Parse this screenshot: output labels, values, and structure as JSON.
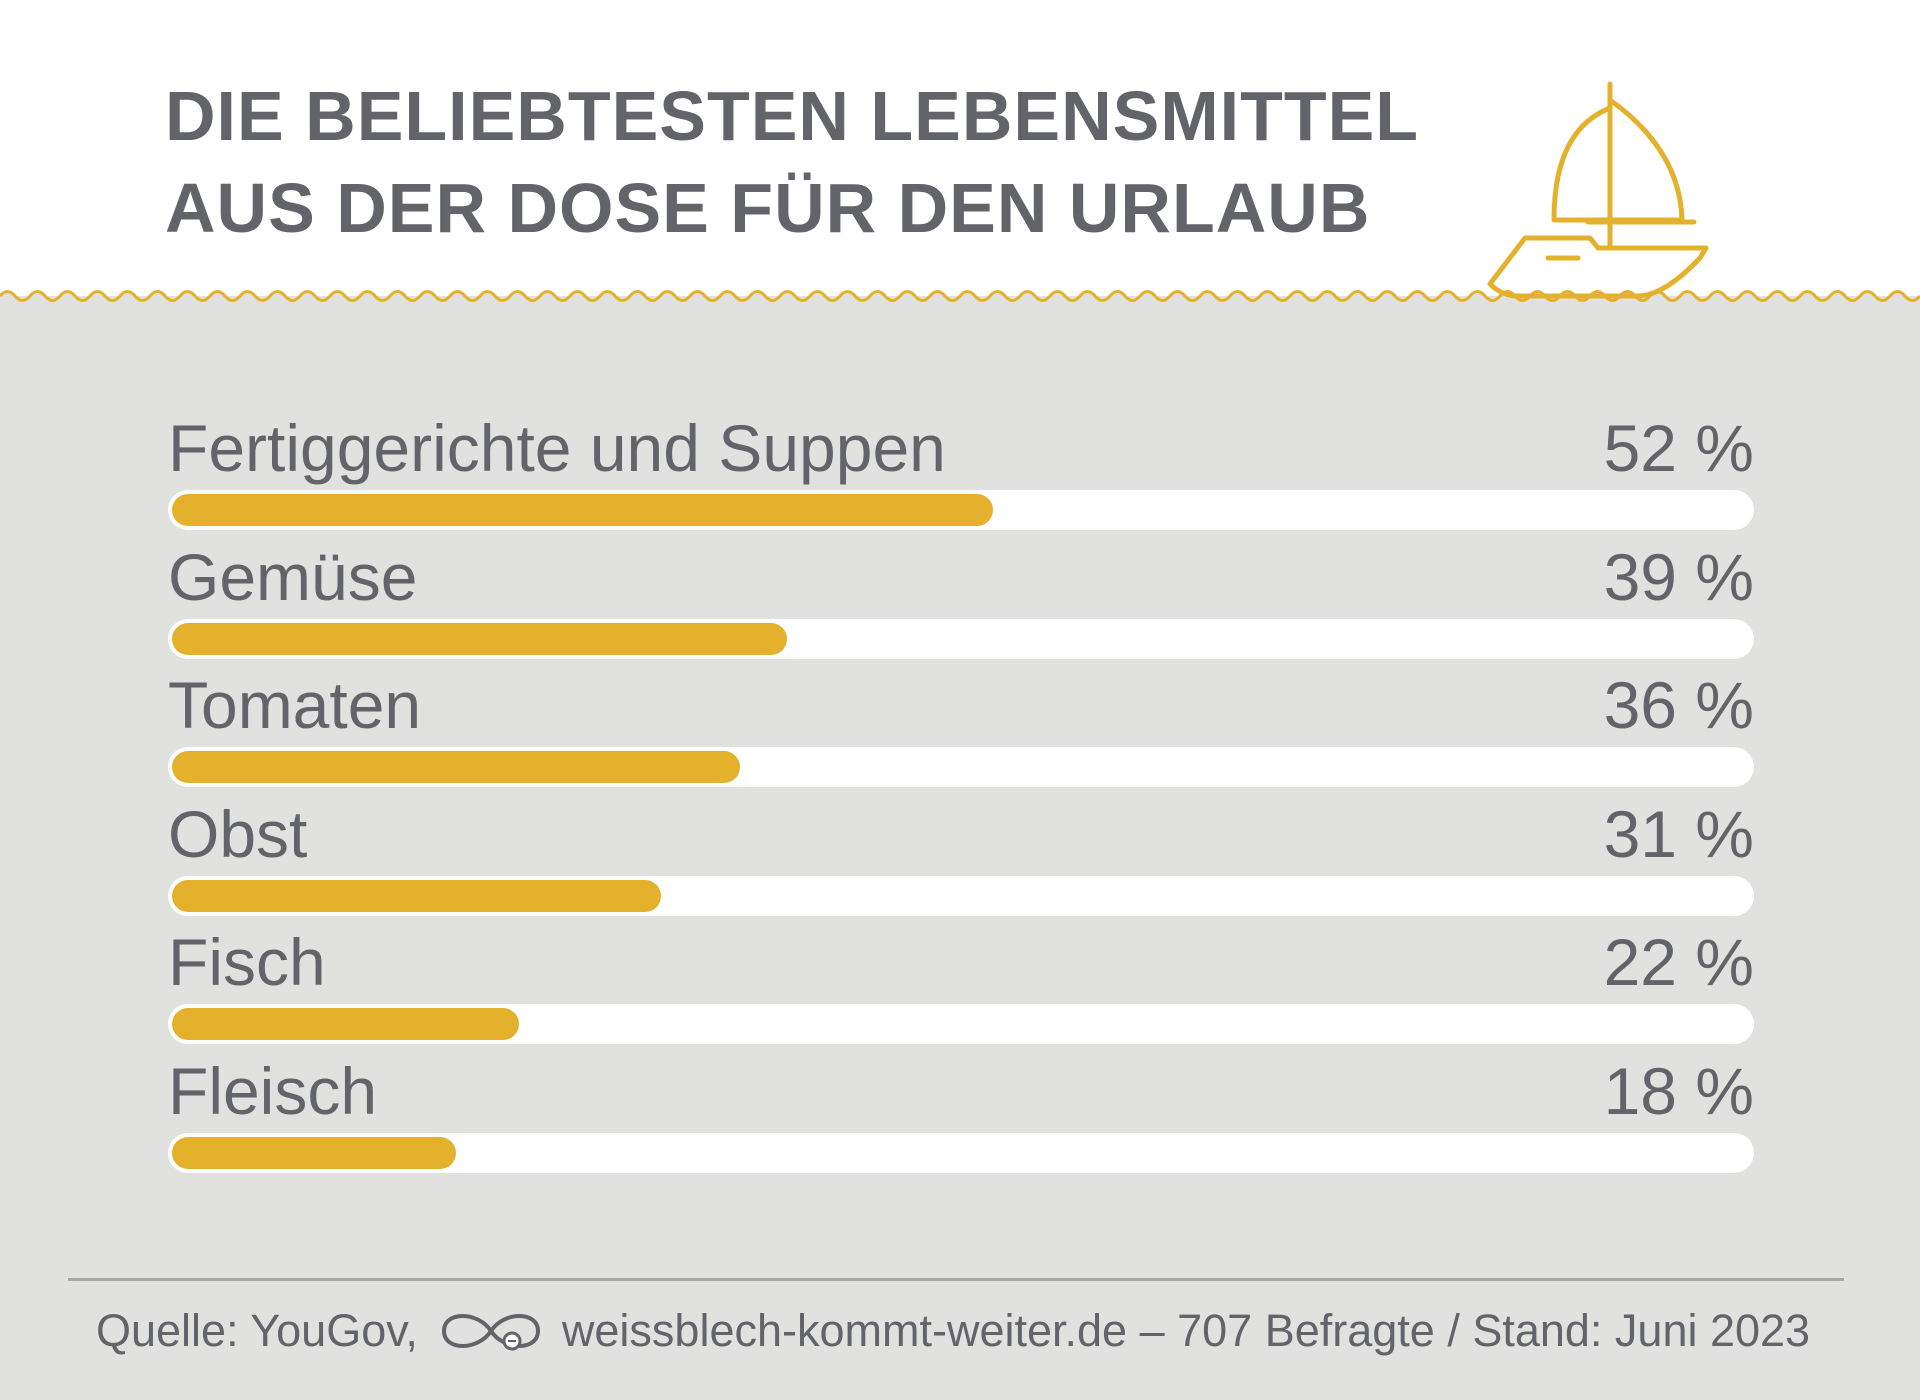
{
  "title_lines": [
    "DIE BELIEBTESTEN LEBENSMITTEL",
    "AUS DER DOSE FÜR DEN URLAUB"
  ],
  "colors": {
    "bar": "#e3b12c",
    "track": "#ffffff",
    "text": "#62646a",
    "background": "#e1e1e0"
  },
  "icons": {
    "boat": "sailboat-icon",
    "logo": "infinity-can-logo-icon"
  },
  "chart_data": {
    "type": "bar",
    "orientation": "horizontal",
    "categories": [
      "Fertiggerichte und Suppen",
      "Gemüse",
      "Tomaten",
      "Obst",
      "Fisch",
      "Fleisch"
    ],
    "values": [
      52,
      39,
      36,
      31,
      22,
      18
    ],
    "value_labels": [
      "52 %",
      "39 %",
      "36 %",
      "31 %",
      "22 %",
      "18 %"
    ],
    "xlim": [
      0,
      100
    ],
    "unit": "%"
  },
  "footer": {
    "source_prefix": "Quelle: YouGov,",
    "source_suffix": "weissblech-kommt-weiter.de – 707 Befragte / Stand: Juni 2023"
  }
}
